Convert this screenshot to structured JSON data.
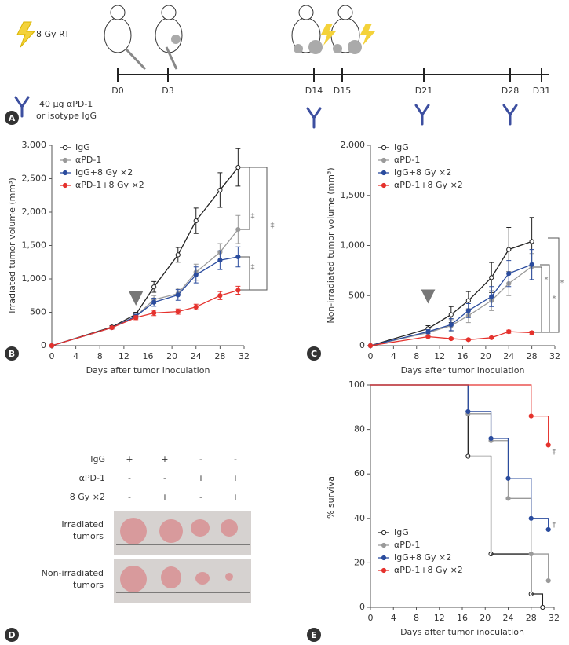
{
  "panel_letters": [
    "A",
    "B",
    "C",
    "D",
    "E"
  ],
  "panel_a": {
    "rt_label": "8 Gy RT",
    "days": [
      "D0",
      "D3",
      "D14",
      "D15",
      "D21",
      "D28",
      "D31"
    ],
    "antibody_label": [
      "40 µg αPD-1",
      "or isotype IgG"
    ]
  },
  "panel_d": {
    "conditions": [
      {
        "name": "IgG",
        "signs": [
          "+",
          "+",
          "-",
          "-"
        ]
      },
      {
        "name": "αPD-1",
        "signs": [
          "-",
          "-",
          "+",
          "+"
        ]
      },
      {
        "name": "8 Gy ×2",
        "signs": [
          "-",
          "+",
          "-",
          "+"
        ]
      }
    ],
    "rows": [
      [
        "Irradiated",
        "tumors"
      ],
      [
        "Non-irradiated",
        "tumors"
      ]
    ]
  },
  "chart_data": [
    {
      "type": "line",
      "x_label": "Days after tumor inoculation",
      "y_label": "Irradiated tumor volume (mm³)",
      "x": [
        0,
        10,
        14,
        17,
        21,
        24,
        28,
        31
      ],
      "xlim": [
        0,
        32
      ],
      "xticks": [
        0,
        4,
        8,
        12,
        16,
        20,
        24,
        28,
        32
      ],
      "ylim": [
        0,
        3000
      ],
      "yticks": [
        0,
        500,
        {
          "value": 1000,
          "label": "1,000"
        },
        {
          "value": 1500,
          "label": "1,500"
        },
        {
          "value": 2000,
          "label": "2,000"
        },
        {
          "value": 2500,
          "label": "2,500"
        },
        {
          "value": 3000,
          "label": "3,000"
        }
      ],
      "legend": "upper left",
      "series": [
        {
          "name": "IgG",
          "color": "#222222",
          "marker_fill": "#ffffff",
          "values": [
            0,
            280,
            470,
            880,
            1360,
            1870,
            2330,
            2670
          ],
          "errors": [
            0,
            20,
            30,
            80,
            110,
            190,
            260,
            280
          ]
        },
        {
          "name": "αPD-1",
          "color": "#9a9a9a",
          "marker_fill": "#9a9a9a",
          "values": [
            0,
            270,
            440,
            690,
            780,
            1100,
            1400,
            1740
          ],
          "errors": [
            0,
            20,
            30,
            60,
            80,
            120,
            130,
            210
          ]
        },
        {
          "name": "IgG+8 Gy ×2",
          "color": "#2b4c9e",
          "marker_fill": "#2b4c9e",
          "values": [
            0,
            270,
            440,
            650,
            760,
            1060,
            1280,
            1330
          ],
          "errors": [
            0,
            20,
            30,
            60,
            80,
            120,
            140,
            150
          ]
        },
        {
          "name": "αPD-1+8 Gy ×2",
          "color": "#e5322d",
          "marker_fill": "#e5322d",
          "values": [
            0,
            270,
            420,
            490,
            510,
            580,
            750,
            830
          ],
          "errors": [
            0,
            20,
            30,
            40,
            40,
            40,
            60,
            60
          ]
        }
      ],
      "annotations": [
        "‡",
        "‡",
        "‡"
      ]
    },
    {
      "type": "line",
      "x_label": "Days after tumor inoculation",
      "y_label": "Non-irradiated tumor volume (mm³)",
      "x": [
        0,
        10,
        14,
        17,
        21,
        24,
        28
      ],
      "xlim": [
        0,
        32
      ],
      "xticks": [
        0,
        4,
        8,
        12,
        16,
        20,
        24,
        28,
        32
      ],
      "ylim": [
        0,
        2000
      ],
      "yticks": [
        0,
        500,
        {
          "value": 1000,
          "label": "1,000"
        },
        {
          "value": 1500,
          "label": "1,500"
        },
        {
          "value": 2000,
          "label": "2,000"
        }
      ],
      "legend": "upper left",
      "series": [
        {
          "name": "IgG",
          "color": "#222222",
          "marker_fill": "#ffffff",
          "values": [
            0,
            170,
            310,
            450,
            680,
            960,
            1040
          ],
          "errors": [
            0,
            30,
            80,
            90,
            150,
            220,
            240
          ]
        },
        {
          "name": "αPD-1",
          "color": "#9a9a9a",
          "marker_fill": "#9a9a9a",
          "values": [
            0,
            130,
            200,
            300,
            450,
            620,
            790
          ],
          "errors": [
            0,
            30,
            60,
            70,
            100,
            120,
            130
          ]
        },
        {
          "name": "IgG+8 Gy ×2",
          "color": "#2b4c9e",
          "marker_fill": "#2b4c9e",
          "values": [
            0,
            140,
            210,
            350,
            490,
            720,
            810
          ],
          "errors": [
            0,
            20,
            60,
            70,
            100,
            130,
            150
          ]
        },
        {
          "name": "αPD-1+8 Gy ×2",
          "color": "#e5322d",
          "marker_fill": "#e5322d",
          "values": [
            0,
            90,
            70,
            60,
            80,
            140,
            130
          ],
          "errors": [
            0,
            10,
            10,
            10,
            10,
            15,
            15
          ]
        }
      ],
      "annotations": [
        "*",
        "*",
        "*"
      ]
    },
    {
      "type": "step",
      "x_label": "Days after tumor inoculation",
      "y_label": "% survival",
      "xlim": [
        0,
        32
      ],
      "xticks": [
        0,
        4,
        8,
        12,
        16,
        20,
        24,
        28,
        32
      ],
      "ylim": [
        0,
        100
      ],
      "yticks": [
        0,
        20,
        40,
        60,
        80,
        100
      ],
      "legend": "lower left",
      "series": [
        {
          "name": "IgG",
          "color": "#222222",
          "marker_fill": "#ffffff",
          "x": [
            0,
            17,
            21,
            28,
            30
          ],
          "values": [
            100,
            68,
            24,
            6,
            0
          ]
        },
        {
          "name": "αPD-1",
          "color": "#9a9a9a",
          "marker_fill": "#9a9a9a",
          "x": [
            0,
            17,
            21,
            24,
            28,
            31
          ],
          "values": [
            100,
            87,
            75,
            49,
            24,
            12
          ]
        },
        {
          "name": "IgG+8 Gy ×2",
          "color": "#2b4c9e",
          "marker_fill": "#2b4c9e",
          "x": [
            0,
            17,
            21,
            24,
            28,
            31
          ],
          "values": [
            100,
            88,
            76,
            58,
            40,
            35
          ]
        },
        {
          "name": "αPD-1+8 Gy ×2",
          "color": "#e5322d",
          "marker_fill": "#e5322d",
          "x": [
            0,
            28,
            31
          ],
          "values": [
            100,
            86,
            73
          ]
        }
      ],
      "annotations": [
        "‡",
        "†"
      ]
    }
  ]
}
